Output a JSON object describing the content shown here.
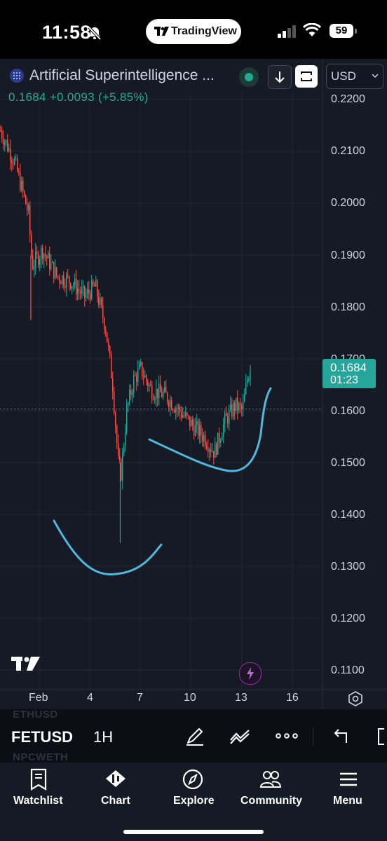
{
  "status_bar": {
    "time": "11:58",
    "pill_label": "TradingView",
    "battery": "59"
  },
  "header": {
    "symbol_title": "Artificial Superintelligence ...",
    "price_line": "0.1684  +0.0093 (+5.85%)",
    "currency": "USD"
  },
  "price_axis": {
    "labels": [
      "0.2200",
      "0.2100",
      "0.2000",
      "0.1900",
      "0.1800",
      "0.1700",
      "0.1600",
      "0.1500",
      "0.1400",
      "0.1300",
      "0.1200",
      "0.1100"
    ],
    "current_price_tag": "0.1684",
    "countdown": "01:23"
  },
  "time_axis": {
    "labels": [
      "Feb",
      "4",
      "7",
      "10",
      "13",
      "16"
    ]
  },
  "chart_data": {
    "type": "candlestick",
    "symbol": "FETUSD",
    "interval": "1H",
    "ylim": [
      0.108,
      0.222
    ],
    "y_ticks": [
      0.22,
      0.21,
      0.2,
      0.19,
      0.18,
      0.17,
      0.16,
      0.15,
      0.14,
      0.13,
      0.12,
      0.11
    ],
    "x_ticks": [
      "Feb",
      "4",
      "7",
      "10",
      "13",
      "16"
    ],
    "last_price": 0.1684,
    "change": "+0.0093 (+5.85%)",
    "up_color": "#26a69a",
    "down_color": "#ef5350",
    "annotation_color": "#4fb8dc",
    "approx_price_path": [
      [
        0,
        0.214
      ],
      [
        20,
        0.208
      ],
      [
        40,
        0.198
      ],
      [
        45,
        0.188
      ],
      [
        60,
        0.191
      ],
      [
        80,
        0.186
      ],
      [
        100,
        0.185
      ],
      [
        120,
        0.182
      ],
      [
        135,
        0.184
      ],
      [
        150,
        0.176
      ],
      [
        160,
        0.165
      ],
      [
        168,
        0.15
      ],
      [
        172,
        0.148
      ],
      [
        180,
        0.16
      ],
      [
        190,
        0.166
      ],
      [
        200,
        0.168
      ],
      [
        215,
        0.164
      ],
      [
        235,
        0.163
      ],
      [
        255,
        0.16
      ],
      [
        275,
        0.157
      ],
      [
        290,
        0.155
      ],
      [
        305,
        0.152
      ],
      [
        320,
        0.158
      ],
      [
        335,
        0.161
      ],
      [
        345,
        0.16
      ],
      [
        352,
        0.166
      ],
      [
        356,
        0.1684
      ]
    ]
  },
  "colors": {
    "chart_bg": "#161a25",
    "accent_green": "#22ab94",
    "grid": "#232734"
  },
  "toolbar": {
    "ghost_top": "ETHUSD",
    "symbol": "FETUSD",
    "interval": "1H",
    "ghost_bottom": "NPCWETH",
    "icons": [
      "draw-pen-icon",
      "indicators-icon",
      "more-icon",
      "undo-icon"
    ]
  },
  "bottom_nav": {
    "items": [
      {
        "label": "Watchlist",
        "icon": "watchlist-icon"
      },
      {
        "label": "Chart",
        "icon": "chart-icon"
      },
      {
        "label": "Explore",
        "icon": "compass-icon"
      },
      {
        "label": "Community",
        "icon": "community-icon"
      },
      {
        "label": "Menu",
        "icon": "menu-icon"
      }
    ]
  }
}
